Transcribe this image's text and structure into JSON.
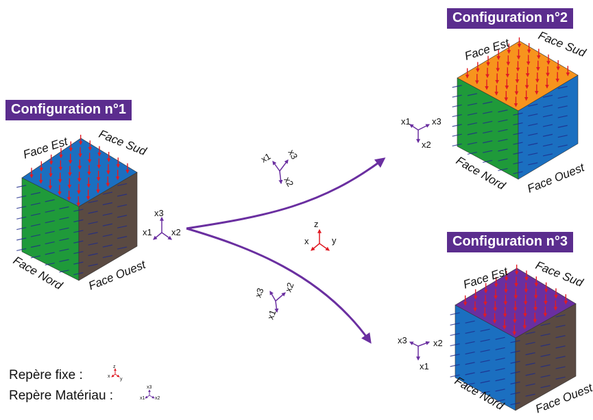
{
  "configurations": [
    {
      "title": "Configuration n°1"
    },
    {
      "title": "Configuration n°2"
    },
    {
      "title": "Configuration n°3"
    }
  ],
  "faces": {
    "est": "Face Est",
    "sud": "Face Sud",
    "nord": "Face Nord",
    "ouest": "Face Ouest"
  },
  "axes": {
    "x1": "x1",
    "x2": "x2",
    "x3": "x3",
    "x": "x",
    "y": "y",
    "z": "z"
  },
  "legend": {
    "fixed": "Repère fixe :",
    "material": "Repère Matériau :"
  },
  "colors": {
    "purple": "#5b2d8e",
    "arrow_purple": "#6a2fa0",
    "red": "#e01b24",
    "cube1_top": "#1b6fc0",
    "cube1_left": "#1f9a3a",
    "cube1_right": "#5a4a42",
    "cube2_top": "#f7941d",
    "cube2_left": "#1f9a3a",
    "cube2_right": "#1b6fc0",
    "cube3_top": "#6a2fa0",
    "cube3_left": "#1b6fc0",
    "cube3_right": "#5a4a42"
  }
}
